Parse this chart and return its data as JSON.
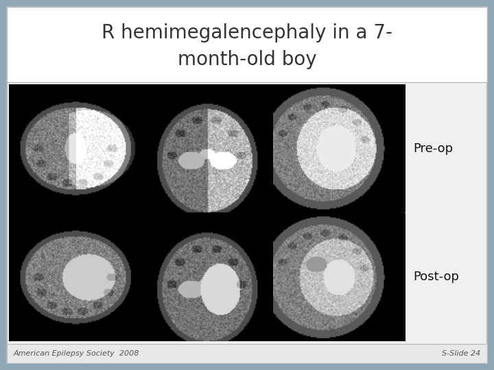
{
  "title_line1": "R hemimegalencephaly in a 7-",
  "title_line2": "month-old boy",
  "label_preop": "Pre-op",
  "label_postop": "Post-op",
  "footer_left": "American Epilepsy Society  2008",
  "footer_right": "S-Slide 24",
  "bg_outer": "#8fa8b8",
  "bg_slide": "#f0f0f0",
  "bg_title": "#ffffff",
  "bg_image": "#000000",
  "bg_footer": "#e8e8e8",
  "title_color": "#333333",
  "label_color": "#111111",
  "footer_color": "#555555",
  "border_color": "#b0b8c0",
  "title_fontsize": 20,
  "label_fontsize": 13,
  "footer_fontsize": 8
}
